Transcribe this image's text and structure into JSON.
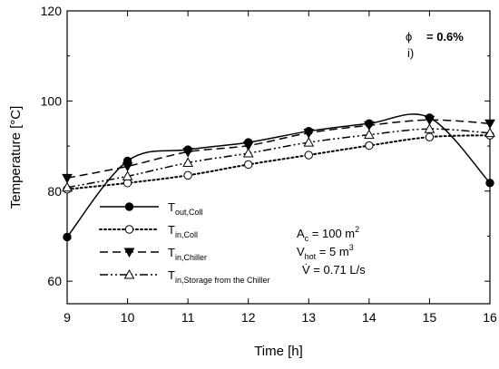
{
  "chart_data": {
    "type": "line",
    "xlabel": "Time [h]",
    "ylabel": "Temperature [°C]",
    "xlim": [
      9,
      16
    ],
    "ylim": [
      55,
      120
    ],
    "xticks": [
      "9",
      "10",
      "11",
      "12",
      "13",
      "14",
      "15",
      "16"
    ],
    "yticks": [
      "60",
      "80",
      "100",
      "120"
    ],
    "x": [
      9,
      10,
      11,
      12,
      13,
      14,
      15,
      16
    ],
    "series": [
      {
        "key": "t_out_coll",
        "name_main": "T",
        "name_sub": "out,Coll",
        "values": [
          69.8,
          86.7,
          89.2,
          90.8,
          93.3,
          95.0,
          96.3,
          81.8
        ],
        "line_style": "solid",
        "marker": "filled-circle"
      },
      {
        "key": "t_in_coll",
        "name_main": "T",
        "name_sub": "in,Coll",
        "values": [
          80.4,
          81.8,
          83.5,
          85.9,
          88.0,
          90.1,
          92.0,
          92.4
        ],
        "line_style": "dotted",
        "marker": "open-circle"
      },
      {
        "key": "t_in_chiller",
        "name_main": "T",
        "name_sub": "in,Chiller",
        "values": [
          82.9,
          85.5,
          88.7,
          90.1,
          92.9,
          94.6,
          95.8,
          95.0
        ],
        "line_style": "dashed",
        "marker": "filled-triangle-down"
      },
      {
        "key": "t_in_storage",
        "name_main": "T",
        "name_sub": "in,Storage from the Chiller",
        "values": [
          80.8,
          83.3,
          86.3,
          88.4,
          90.8,
          92.5,
          93.8,
          92.9
        ],
        "line_style": "dash-dot-dot",
        "marker": "open-triangle-up"
      }
    ],
    "legend_position": "lower-left",
    "grid": false
  },
  "annotations": {
    "phi_symbol": "ϕ",
    "phi_value": "= 0.6%",
    "panel_label": "i)",
    "params": [
      {
        "main": "A",
        "sub": "c",
        "rest": " = 100 m",
        "sup": "2"
      },
      {
        "main": "V",
        "sub": "hot",
        "rest": " = 5 m",
        "sup": "3"
      },
      {
        "main": "V̇",
        "sub": "",
        "rest": " = 0.71 L/s",
        "sup": ""
      }
    ]
  }
}
